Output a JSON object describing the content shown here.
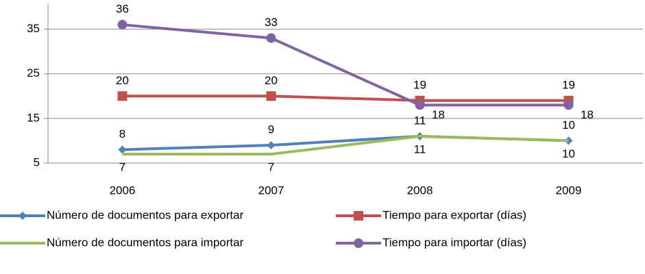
{
  "chart_data": {
    "type": "line",
    "categories": [
      "2006",
      "2007",
      "2008",
      "2009"
    ],
    "series": [
      {
        "name": "Número de documentos para exportar",
        "color": "#4f81bd",
        "marker": "diamond",
        "values": [
          8,
          9,
          11,
          10
        ]
      },
      {
        "name": "Tiempo para exportar (días)",
        "color": "#c0504d",
        "marker": "square",
        "values": [
          20,
          20,
          19,
          19
        ]
      },
      {
        "name": "Número de documentos para importar",
        "color": "#9bbb59",
        "marker": "none",
        "values": [
          7,
          7,
          11,
          10
        ]
      },
      {
        "name": "Tiempo para importar (días)",
        "color": "#8064a2",
        "marker": "circle",
        "values": [
          36,
          33,
          18,
          18
        ]
      }
    ],
    "ylim": [
      5,
      40
    ],
    "yticks": [
      5,
      15,
      25,
      35
    ],
    "grid": true,
    "legend": "bottom"
  }
}
